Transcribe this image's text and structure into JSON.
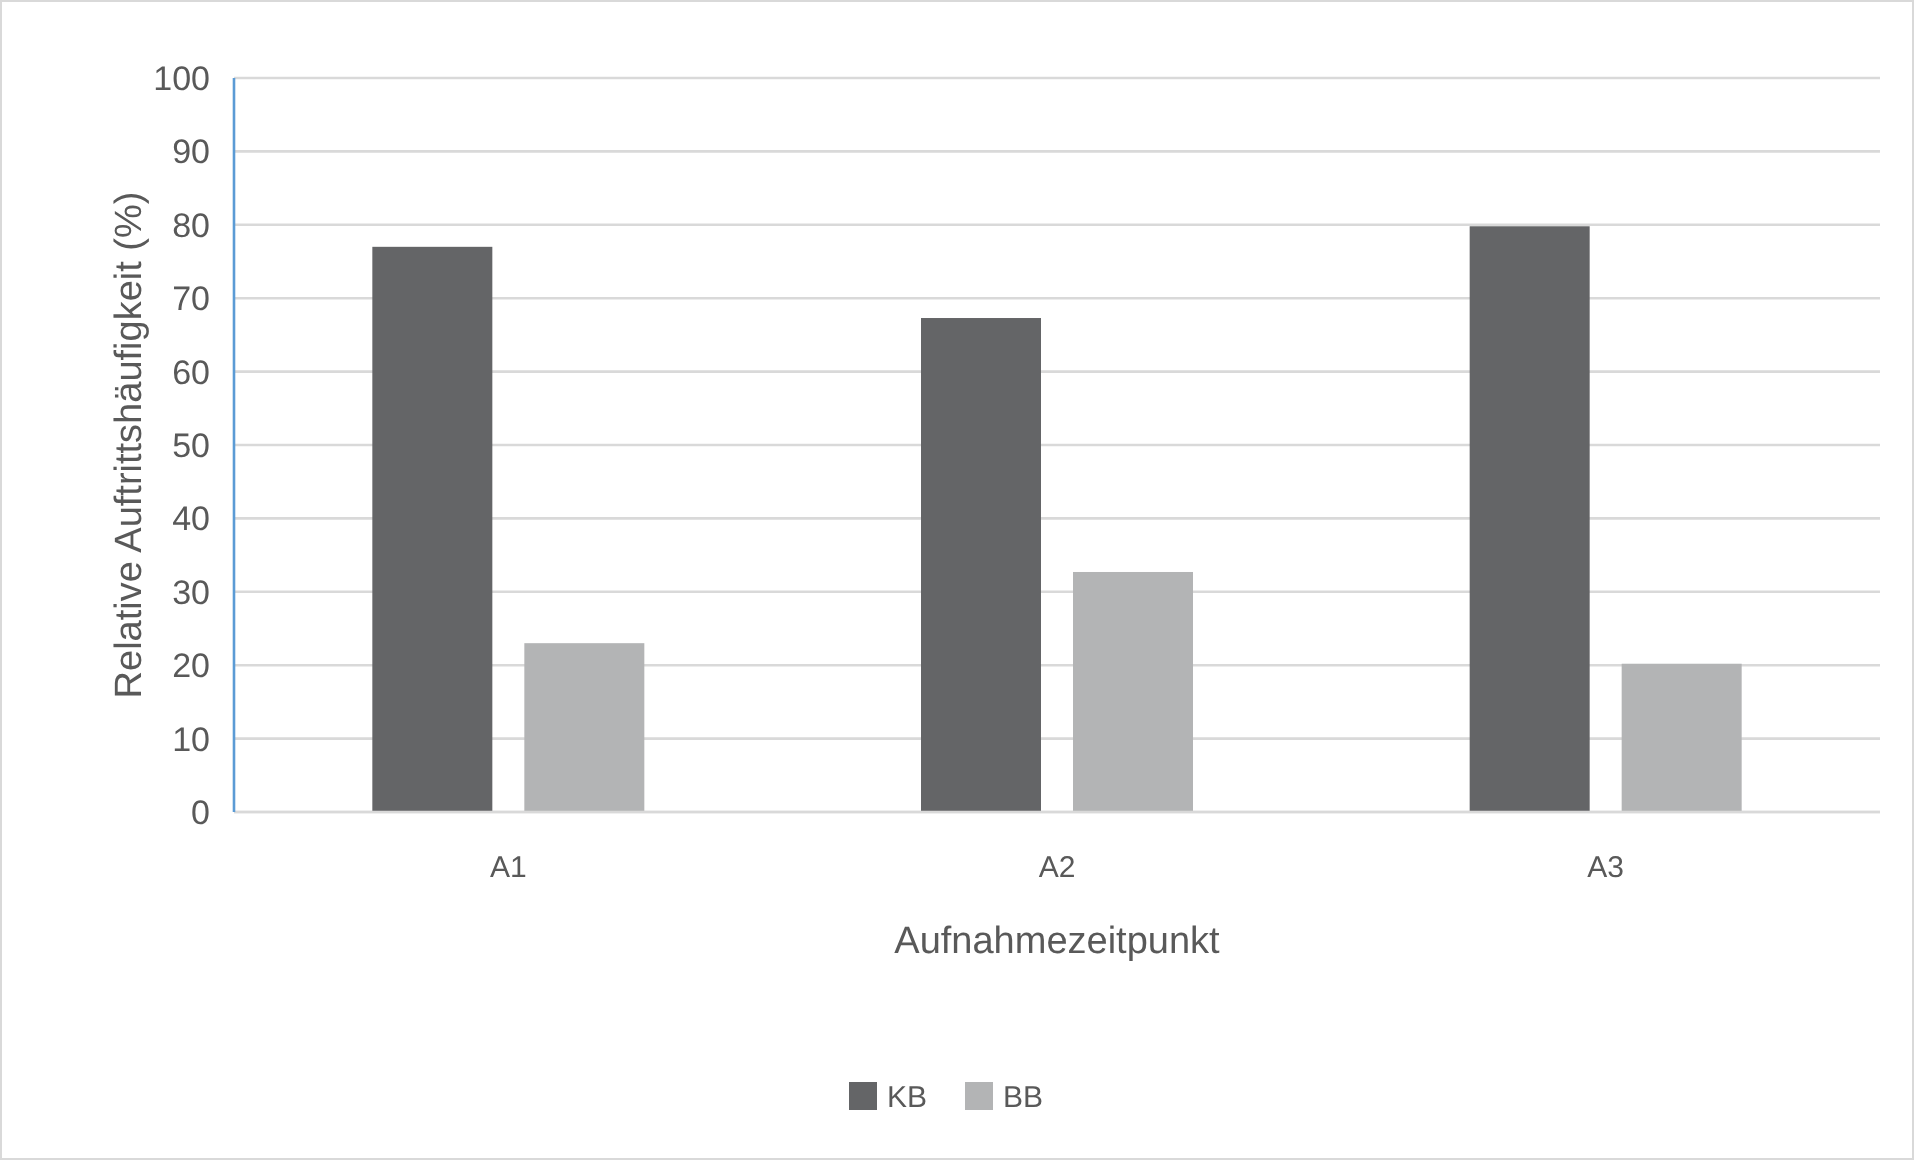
{
  "chart_data": {
    "type": "bar",
    "xlabel": "Aufnahmezeitpunkt",
    "ylabel": "Relative Auftrittshäufigkeit (%)",
    "categories": [
      "A1",
      "A2",
      "A3"
    ],
    "series": [
      {
        "name": "KB",
        "color": "#646567",
        "values": [
          77,
          67.3,
          79.8
        ]
      },
      {
        "name": "BB",
        "color": "#b3b4b5",
        "values": [
          23,
          32.7,
          20.2
        ]
      }
    ],
    "ylim": [
      0,
      100
    ],
    "yticks": [
      0,
      10,
      20,
      30,
      40,
      50,
      60,
      70,
      80,
      90,
      100
    ],
    "grid": "y",
    "legend": "bottom"
  }
}
